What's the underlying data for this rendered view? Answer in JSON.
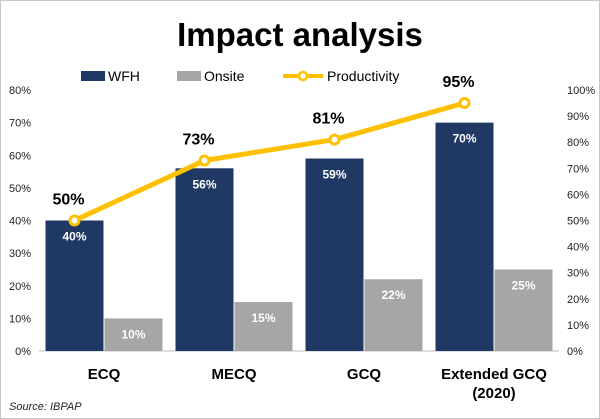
{
  "chart_data": {
    "type": "bar",
    "title": "Impact analysis",
    "source": "Source: IBPAP",
    "categories": [
      "ECQ",
      "MECQ",
      "GCQ",
      "Extended GCQ\n(2020)"
    ],
    "series": [
      {
        "name": "WFH",
        "kind": "bar",
        "axis": "left",
        "color": "#1f3864",
        "values": [
          40,
          56,
          59,
          70
        ],
        "labels": [
          "40%",
          "56%",
          "59%",
          "70%"
        ]
      },
      {
        "name": "Onsite",
        "kind": "bar",
        "axis": "left",
        "color": "#a6a6a6",
        "values": [
          10,
          15,
          22,
          25
        ],
        "labels": [
          "10%",
          "15%",
          "22%",
          "25%"
        ]
      },
      {
        "name": "Productivity",
        "kind": "line",
        "axis": "right",
        "color": "#ffc000",
        "values": [
          50,
          73,
          81,
          95
        ],
        "labels": [
          "50%",
          "73%",
          "81%",
          "95%"
        ]
      }
    ],
    "left_axis": {
      "ylim": [
        0,
        80
      ],
      "ticks": [
        0,
        10,
        20,
        30,
        40,
        50,
        60,
        70,
        80
      ],
      "tick_labels": [
        "0%",
        "10%",
        "20%",
        "30%",
        "40%",
        "50%",
        "60%",
        "70%",
        "80%"
      ]
    },
    "right_axis": {
      "ylim": [
        0,
        100
      ],
      "ticks": [
        0,
        10,
        20,
        30,
        40,
        50,
        60,
        70,
        80,
        90,
        100
      ],
      "tick_labels": [
        "0%",
        "10%",
        "20%",
        "30%",
        "40%",
        "50%",
        "60%",
        "70%",
        "80%",
        "90%",
        "100%"
      ]
    },
    "grid": false,
    "legend": {
      "position": "top",
      "entries": [
        "WFH",
        "Onsite",
        "Productivity"
      ]
    }
  }
}
